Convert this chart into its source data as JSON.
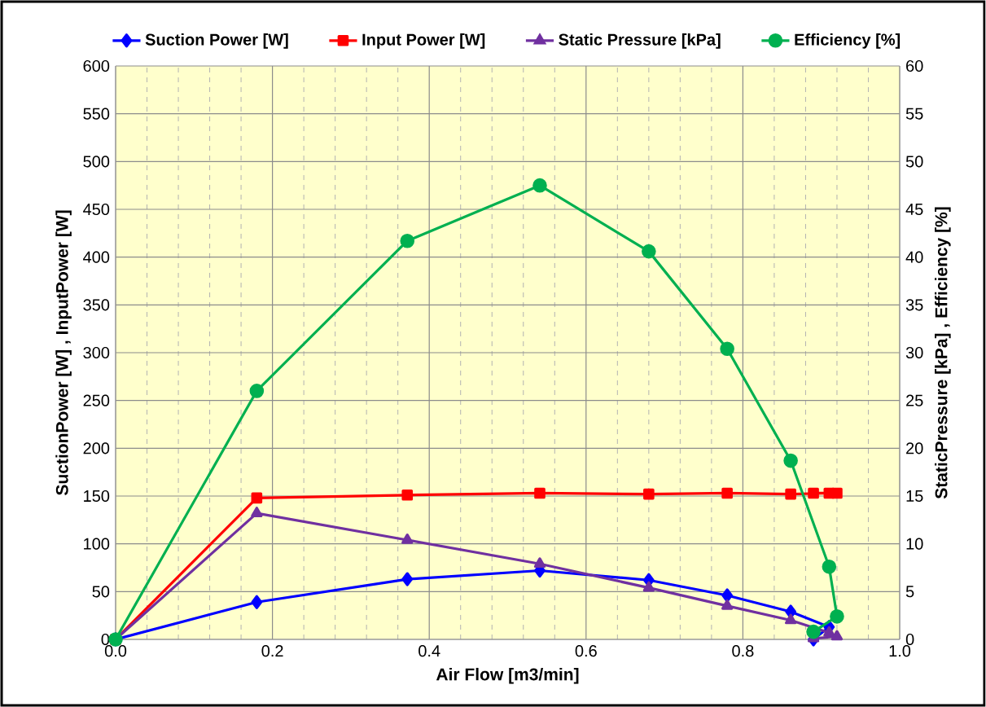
{
  "chart_data": {
    "type": "line",
    "xlabel": "Air Flow [m3/min]",
    "ylabel": "SuctionPower [W] , InputPower [W]",
    "y2label": "StaticPressure [kPa] , Efficiency [%]",
    "x": [
      0,
      0.18,
      0.372,
      0.541,
      0.68,
      0.78,
      0.861,
      0.91,
      0.92,
      0.89
    ],
    "series": [
      {
        "name": "Suction Power [W]",
        "color": "#0000ff",
        "marker": "diamond",
        "values": [
          0,
          39,
          63,
          72,
          62,
          46,
          29,
          13,
          null,
          0
        ]
      },
      {
        "name": "Input Power [W]",
        "color": "#ff0000",
        "marker": "square",
        "values": [
          0,
          148,
          151,
          153,
          152,
          153,
          152,
          153,
          153,
          153
        ]
      },
      {
        "name": "Static Pressure [kPa]",
        "color": "#7030a0",
        "marker": "triangle",
        "axis": "y2",
        "values": [
          0,
          13.2,
          10.4,
          7.9,
          5.4,
          3.5,
          2.0,
          0.7,
          0.3,
          0.1
        ]
      },
      {
        "name": "Efficiency [%]",
        "color": "#00b050",
        "marker": "circle",
        "axis": "y2",
        "values": [
          0,
          26.0,
          41.7,
          47.5,
          40.6,
          30.4,
          18.7,
          7.6,
          2.4,
          0.8
        ]
      }
    ],
    "xlim": [
      0,
      1.0
    ],
    "xticks": [
      {
        "value": 0,
        "label": "0.0"
      },
      0.2,
      0.4,
      0.6,
      0.8,
      {
        "value": 1.0,
        "label": "1.0"
      }
    ],
    "ylim": [
      0,
      600
    ],
    "yticks": [
      0,
      50,
      100,
      150,
      200,
      250,
      300,
      350,
      400,
      450,
      500,
      550,
      600
    ],
    "y2lim": [
      0,
      60
    ],
    "y2ticks": [
      0,
      5,
      10,
      15,
      20,
      25,
      30,
      35,
      40,
      45,
      50,
      55,
      60
    ],
    "grid": true,
    "legend": "top",
    "line_style": "solid"
  }
}
